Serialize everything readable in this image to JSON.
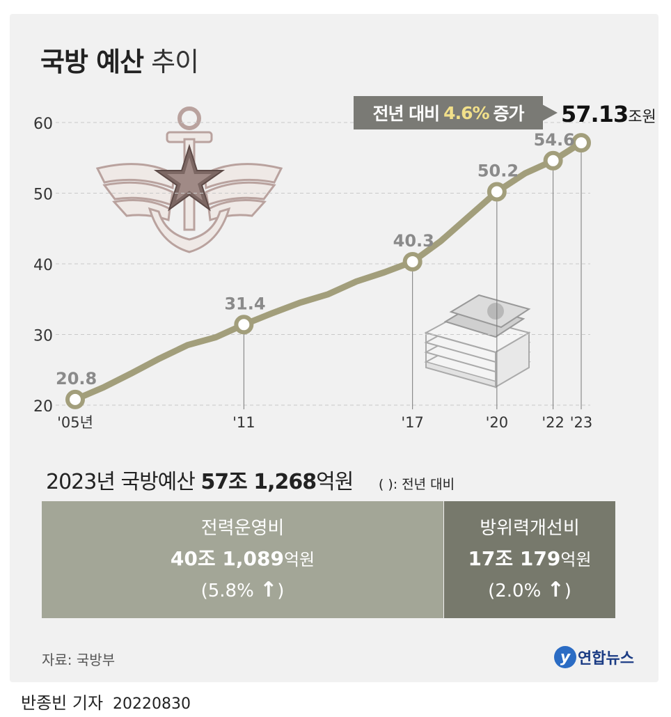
{
  "title": {
    "bold": "국방 예산",
    "rest": "추이"
  },
  "colors": {
    "line": "#a29e7b",
    "marker_fill": "#ffffff",
    "panel": "#f1f1f1",
    "box_left": "#a3a697",
    "box_right": "#77796c",
    "badge": "#7a7a75",
    "highlight": "#f2e08a"
  },
  "annotation": {
    "prefix": "전년 대비",
    "highlight": "4.6%",
    "suffix": "증가"
  },
  "final": {
    "value": "57.13",
    "unit": "조원"
  },
  "chart_data": {
    "type": "line",
    "title": "국방 예산 추이",
    "ylim": [
      20,
      60
    ],
    "yticks": [
      "20",
      "30",
      "40",
      "50",
      "60"
    ],
    "grid": true,
    "xlabels": [
      {
        "year": 2005,
        "label": "'05년"
      },
      {
        "year": 2011,
        "label": "'11"
      },
      {
        "year": 2017,
        "label": "'17"
      },
      {
        "year": 2020,
        "label": "'20"
      },
      {
        "year": 2022,
        "label": "'22"
      },
      {
        "year": 2023,
        "label": "'23"
      }
    ],
    "series": [
      {
        "values": [
          {
            "x": 2005,
            "y": 20.8
          },
          {
            "x": 2006,
            "y": 22.5
          },
          {
            "x": 2007,
            "y": 24.5
          },
          {
            "x": 2008,
            "y": 26.6
          },
          {
            "x": 2009,
            "y": 28.5
          },
          {
            "x": 2010,
            "y": 29.6
          },
          {
            "x": 2011,
            "y": 31.4
          },
          {
            "x": 2012,
            "y": 33.0
          },
          {
            "x": 2013,
            "y": 34.5
          },
          {
            "x": 2014,
            "y": 35.7
          },
          {
            "x": 2015,
            "y": 37.5
          },
          {
            "x": 2016,
            "y": 38.8
          },
          {
            "x": 2017,
            "y": 40.3
          },
          {
            "x": 2018,
            "y": 43.2
          },
          {
            "x": 2019,
            "y": 46.7
          },
          {
            "x": 2020,
            "y": 50.2
          },
          {
            "x": 2021,
            "y": 52.8
          },
          {
            "x": 2022,
            "y": 54.6
          },
          {
            "x": 2023,
            "y": 57.13
          }
        ],
        "markers": [
          {
            "x": 2005,
            "y": 20.8,
            "label": "20.8"
          },
          {
            "x": 2011,
            "y": 31.4,
            "label": "31.4"
          },
          {
            "x": 2017,
            "y": 40.3,
            "label": "40.3"
          },
          {
            "x": 2020,
            "y": 50.2,
            "label": "50.2"
          },
          {
            "x": 2022,
            "y": 54.6,
            "label": "54.6"
          },
          {
            "x": 2023,
            "y": 57.13,
            "label": ""
          }
        ]
      }
    ]
  },
  "summary": {
    "year": "2023년 국방예산",
    "amount": "57조 1,268",
    "unit": "억원",
    "note": "( ): 전년 대비"
  },
  "boxes": [
    {
      "name": "전력운영비",
      "amount": "40조 1,089",
      "unit": "억원",
      "change": "(5.8%",
      "close": ")"
    },
    {
      "name": "방위력개선비",
      "amount": "17조 179",
      "unit": "억원",
      "change": "(2.0%",
      "close": ")"
    }
  ],
  "source": "자료: 국방부",
  "logo": {
    "mark": "y",
    "text": "연합뉴스"
  },
  "reporter": {
    "name": "반종빈 기자",
    "date": "20220830"
  },
  "icons": [
    "emblem-icon",
    "money-stack-icon",
    "arrow-up-icon"
  ]
}
